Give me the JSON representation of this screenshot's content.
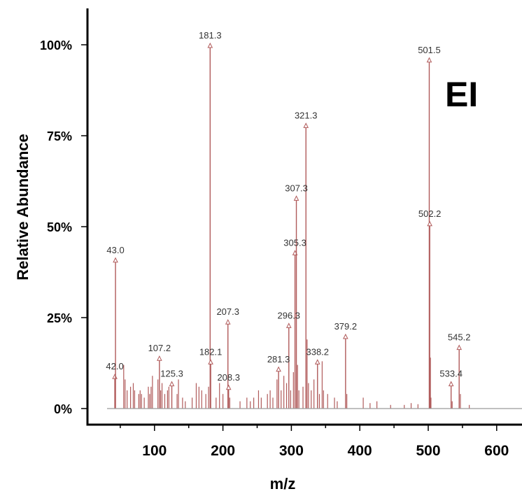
{
  "chart_data": {
    "type": "bar",
    "title": "",
    "annotation": "EI",
    "xlabel": "m/z",
    "ylabel": "Relative Abundance",
    "xlim": [
      0,
      650
    ],
    "ylim": [
      0,
      100
    ],
    "x_ticks": [
      100,
      200,
      300,
      400,
      500,
      600
    ],
    "x_tick_labels": [
      "100",
      "200",
      "300",
      "400",
      "500",
      "600"
    ],
    "y_ticks": [
      0,
      25,
      50,
      75,
      100
    ],
    "y_tick_labels": [
      "0%",
      "25%",
      "50%",
      "75%",
      "100%"
    ],
    "grid": false,
    "legend": "none",
    "colors": {
      "peak": "#b05a5a",
      "marker": "#b05a5a",
      "baseline": "#9a9a9a"
    },
    "labeled_peaks": [
      {
        "x": 42.0,
        "y": 9,
        "label": "42.0"
      },
      {
        "x": 43.0,
        "y": 41,
        "label": "43.0"
      },
      {
        "x": 107.2,
        "y": 14,
        "label": "107.2"
      },
      {
        "x": 125.3,
        "y": 7,
        "label": "125.3"
      },
      {
        "x": 181.3,
        "y": 100,
        "label": "181.3"
      },
      {
        "x": 182.1,
        "y": 13,
        "label": "182.1"
      },
      {
        "x": 207.3,
        "y": 24,
        "label": "207.3"
      },
      {
        "x": 208.3,
        "y": 6,
        "label": "208.3"
      },
      {
        "x": 281.3,
        "y": 11,
        "label": "281.3"
      },
      {
        "x": 296.3,
        "y": 23,
        "label": "296.3"
      },
      {
        "x": 305.3,
        "y": 43,
        "label": "305.3"
      },
      {
        "x": 307.3,
        "y": 58,
        "label": "307.3"
      },
      {
        "x": 321.3,
        "y": 78,
        "label": "321.3"
      },
      {
        "x": 338.2,
        "y": 13,
        "label": "338.2"
      },
      {
        "x": 379.2,
        "y": 20,
        "label": "379.2"
      },
      {
        "x": 501.5,
        "y": 96,
        "label": "501.5"
      },
      {
        "x": 502.2,
        "y": 51,
        "label": "502.2"
      },
      {
        "x": 533.4,
        "y": 7,
        "label": "533.4"
      },
      {
        "x": 545.2,
        "y": 17,
        "label": "545.2"
      }
    ],
    "minor_peaks": [
      {
        "x": 55,
        "y": 12
      },
      {
        "x": 57,
        "y": 8
      },
      {
        "x": 60,
        "y": 5
      },
      {
        "x": 65,
        "y": 6
      },
      {
        "x": 69,
        "y": 7
      },
      {
        "x": 71,
        "y": 5
      },
      {
        "x": 77,
        "y": 4
      },
      {
        "x": 79,
        "y": 5
      },
      {
        "x": 81,
        "y": 4
      },
      {
        "x": 85,
        "y": 3
      },
      {
        "x": 91,
        "y": 6
      },
      {
        "x": 93,
        "y": 4
      },
      {
        "x": 95,
        "y": 6
      },
      {
        "x": 97,
        "y": 9
      },
      {
        "x": 105,
        "y": 8
      },
      {
        "x": 109,
        "y": 5
      },
      {
        "x": 111,
        "y": 7
      },
      {
        "x": 115,
        "y": 4
      },
      {
        "x": 119,
        "y": 5
      },
      {
        "x": 121,
        "y": 6
      },
      {
        "x": 133,
        "y": 4
      },
      {
        "x": 135,
        "y": 8
      },
      {
        "x": 141,
        "y": 3
      },
      {
        "x": 145,
        "y": 2
      },
      {
        "x": 155,
        "y": 3
      },
      {
        "x": 161,
        "y": 7
      },
      {
        "x": 165,
        "y": 6
      },
      {
        "x": 169,
        "y": 5
      },
      {
        "x": 175,
        "y": 4
      },
      {
        "x": 179,
        "y": 6
      },
      {
        "x": 190,
        "y": 3
      },
      {
        "x": 195,
        "y": 7
      },
      {
        "x": 200,
        "y": 4
      },
      {
        "x": 210,
        "y": 3
      },
      {
        "x": 225,
        "y": 2
      },
      {
        "x": 235,
        "y": 3
      },
      {
        "x": 240,
        "y": 2
      },
      {
        "x": 245,
        "y": 3
      },
      {
        "x": 252,
        "y": 5
      },
      {
        "x": 256,
        "y": 3
      },
      {
        "x": 265,
        "y": 4
      },
      {
        "x": 269,
        "y": 5
      },
      {
        "x": 273,
        "y": 3
      },
      {
        "x": 279,
        "y": 8
      },
      {
        "x": 285,
        "y": 5
      },
      {
        "x": 289,
        "y": 9
      },
      {
        "x": 293,
        "y": 7
      },
      {
        "x": 299,
        "y": 5
      },
      {
        "x": 303,
        "y": 10
      },
      {
        "x": 309,
        "y": 12
      },
      {
        "x": 311,
        "y": 5
      },
      {
        "x": 317,
        "y": 6
      },
      {
        "x": 323,
        "y": 19
      },
      {
        "x": 325,
        "y": 7
      },
      {
        "x": 329,
        "y": 5
      },
      {
        "x": 333,
        "y": 8
      },
      {
        "x": 341,
        "y": 4
      },
      {
        "x": 345,
        "y": 13
      },
      {
        "x": 347,
        "y": 5
      },
      {
        "x": 353,
        "y": 4
      },
      {
        "x": 363,
        "y": 3
      },
      {
        "x": 367,
        "y": 2
      },
      {
        "x": 381,
        "y": 4
      },
      {
        "x": 405,
        "y": 3
      },
      {
        "x": 415,
        "y": 1.5
      },
      {
        "x": 425,
        "y": 2
      },
      {
        "x": 445,
        "y": 1
      },
      {
        "x": 465,
        "y": 1
      },
      {
        "x": 475,
        "y": 1.5
      },
      {
        "x": 485,
        "y": 1.2
      },
      {
        "x": 503.2,
        "y": 14
      },
      {
        "x": 504,
        "y": 3
      },
      {
        "x": 535,
        "y": 2
      },
      {
        "x": 547,
        "y": 4
      },
      {
        "x": 560,
        "y": 1
      }
    ]
  }
}
